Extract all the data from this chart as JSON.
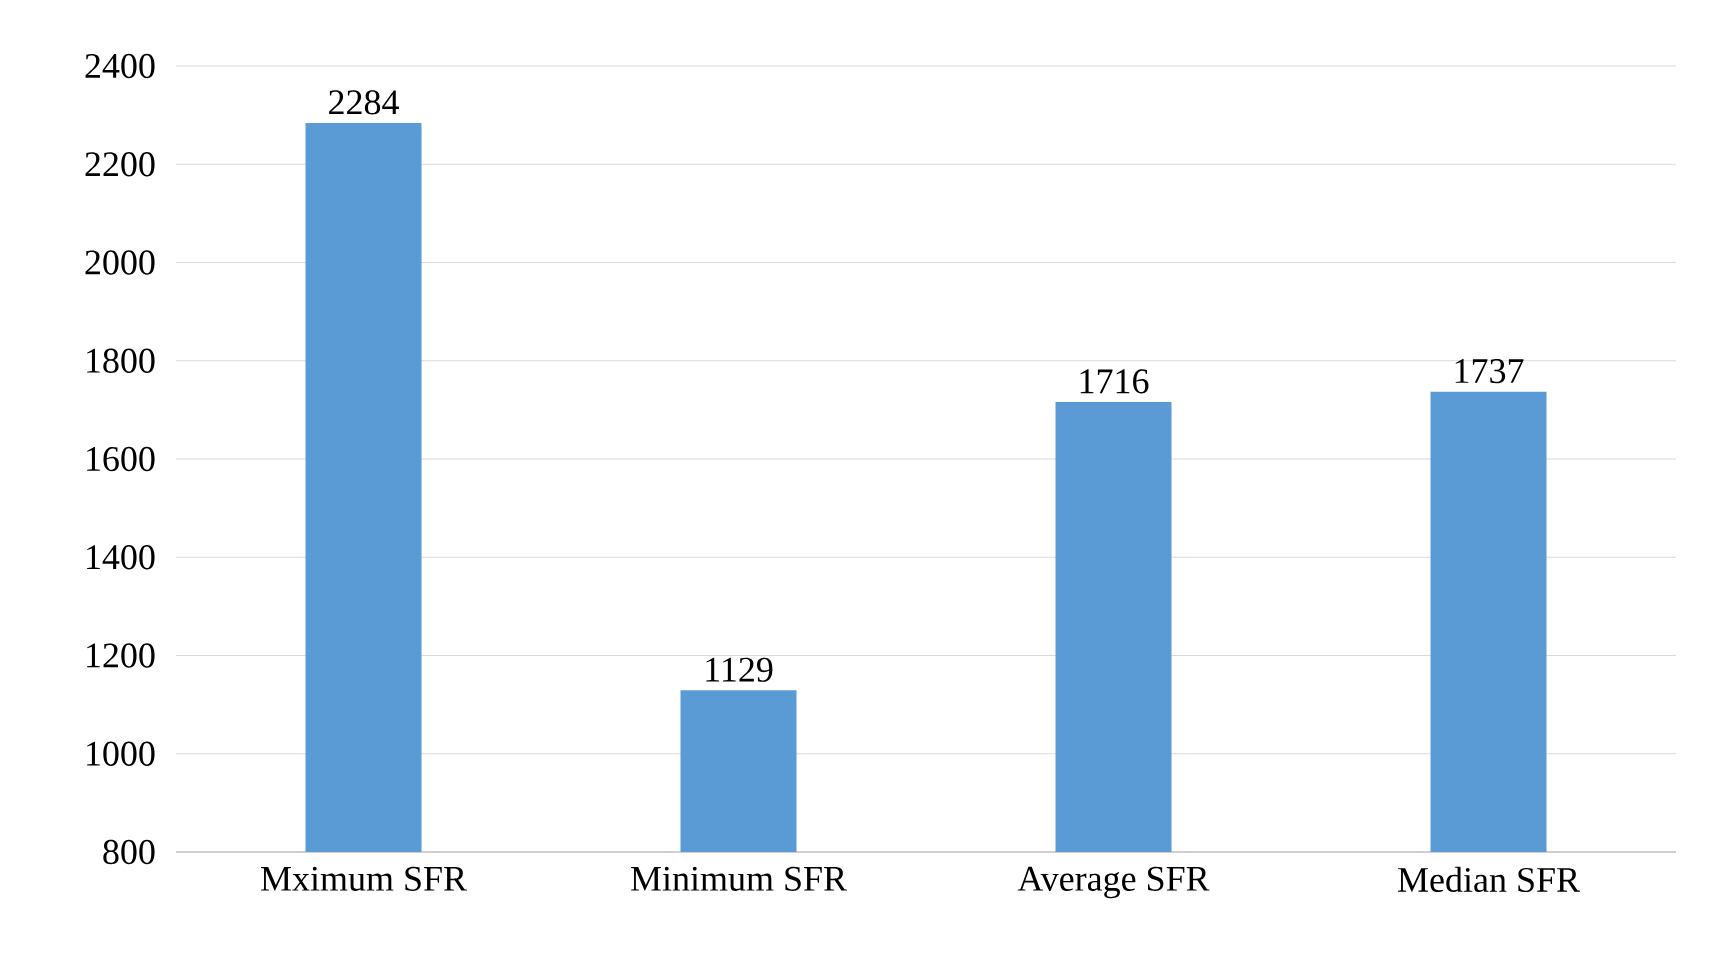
{
  "chart_data": {
    "type": "bar",
    "categories": [
      "Mximum SFR",
      "Minimum SFR",
      "Average SFR",
      "Median SFR"
    ],
    "values": [
      2284,
      1129,
      1716,
      1737
    ],
    "color": "#5b9bd5",
    "ylim": [
      800,
      2400
    ],
    "yticks": [
      800,
      1000,
      1200,
      1400,
      1600,
      1800,
      2000,
      2200,
      2400
    ],
    "grid": "y",
    "data_labels": true
  }
}
